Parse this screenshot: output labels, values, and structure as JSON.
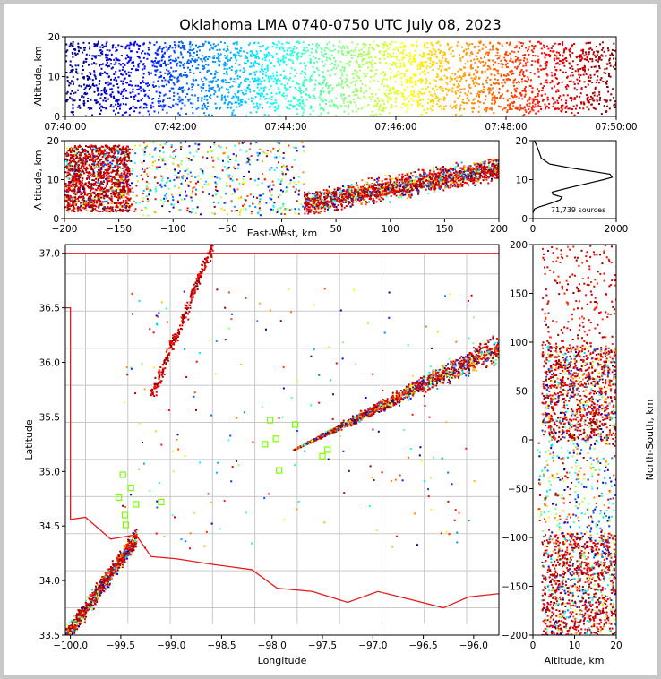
{
  "chart_data": [
    {
      "id": "time_altitude",
      "type": "scatter",
      "title": "Oklahoma LMA 0740-0750 UTC July 08, 2023",
      "ylabel": "Altitude, km",
      "xlim": [
        "07:40:00",
        "07:50:00"
      ],
      "ylim": [
        0,
        20
      ],
      "xticks": [
        "07:40:00",
        "07:42:00",
        "07:44:00",
        "07:46:00",
        "07:48:00",
        "07:50:00"
      ],
      "yticks": [
        "0",
        "10",
        "20"
      ],
      "color_by": "time",
      "colormap": "jet",
      "altitude_band_km": [
        2,
        19
      ]
    },
    {
      "id": "east_altitude",
      "type": "scatter",
      "xlabel": "East-West, km",
      "ylabel": "Altitude, km",
      "xlim": [
        -200,
        200
      ],
      "ylim": [
        0,
        20
      ],
      "xticks": [
        "−200",
        "−150",
        "−100",
        "−50",
        "0",
        "50",
        "100",
        "150",
        "200"
      ],
      "yticks": [
        "0",
        "10",
        "20"
      ],
      "clusters": [
        {
          "x_range": [
            -200,
            -140
          ],
          "z_range": [
            2,
            19
          ],
          "colors": "mixed, mostly dark red"
        },
        {
          "x_range": [
            20,
            200
          ],
          "z_range": [
            2,
            18
          ],
          "colors": "arc from blue to dark red"
        }
      ]
    },
    {
      "id": "altitude_histogram",
      "type": "line",
      "xlim": [
        0,
        2000
      ],
      "ylim": [
        0,
        20
      ],
      "xticks": [
        "0",
        "2000"
      ],
      "yticks": [
        "0",
        "10",
        "20"
      ],
      "annotation": "71,739 sources",
      "x": [
        0,
        40,
        150,
        300,
        450,
        650,
        700,
        480,
        460,
        900,
        1500,
        1700,
        1900,
        1850,
        1500,
        900,
        400,
        200,
        150,
        80,
        30
      ],
      "y": [
        1.5,
        2.5,
        3.0,
        3.5,
        4.0,
        4.8,
        5.5,
        6.2,
        6.8,
        8.0,
        9.5,
        10.0,
        10.6,
        11.4,
        12.0,
        13.0,
        14.0,
        15.5,
        17.0,
        19.0,
        20.0
      ]
    },
    {
      "id": "plan_view",
      "type": "scatter",
      "xlabel": "Longitude",
      "ylabel": "Latitude",
      "xlim": [
        -100.05,
        -95.75
      ],
      "ylim": [
        33.5,
        37.08
      ],
      "xticks": [
        "−100.0",
        "−99.5",
        "−99.0",
        "−98.5",
        "−98.0",
        "−97.5",
        "−97.0",
        "−96.5",
        "−96.0"
      ],
      "yticks": [
        "33.5",
        "34.0",
        "34.5",
        "35.0",
        "35.5",
        "36.0",
        "36.5",
        "37.0"
      ],
      "stations_lon_lat": [
        [
          -99.48,
          34.97
        ],
        [
          -99.4,
          34.85
        ],
        [
          -99.52,
          34.76
        ],
        [
          -99.35,
          34.7
        ],
        [
          -99.46,
          34.6
        ],
        [
          -99.45,
          34.51
        ],
        [
          -99.1,
          34.72
        ],
        [
          -98.02,
          35.47
        ],
        [
          -97.96,
          35.3
        ],
        [
          -98.07,
          35.25
        ],
        [
          -97.93,
          35.01
        ],
        [
          -97.77,
          35.43
        ],
        [
          -97.5,
          35.14
        ],
        [
          -97.45,
          35.2
        ]
      ],
      "storm_clusters": [
        {
          "name": "southwest",
          "lon_range": [
            -100.05,
            -99.35
          ],
          "lat_range": [
            33.5,
            34.4
          ]
        },
        {
          "name": "northeast line",
          "lon_range": [
            -97.8,
            -95.75
          ],
          "lat_range": [
            35.2,
            36.15
          ]
        },
        {
          "name": "northwest trail",
          "lon_range": [
            -99.2,
            -98.6
          ],
          "lat_range": [
            35.7,
            37.08
          ]
        }
      ]
    },
    {
      "id": "altitude_north",
      "type": "scatter",
      "xlabel": "Altitude, km",
      "ylabel": "North-South, km",
      "xlim": [
        0,
        20
      ],
      "ylim": [
        -200,
        200
      ],
      "xticks": [
        "0",
        "10",
        "20"
      ],
      "yticks": [
        "−200",
        "−150",
        "−100",
        "−50",
        "0",
        "50",
        "100",
        "150",
        "200"
      ],
      "clusters": [
        {
          "z_range": [
            2,
            20
          ],
          "y_range": [
            0,
            97
          ]
        },
        {
          "z_range": [
            2,
            20
          ],
          "y_range": [
            -200,
            -95
          ]
        }
      ]
    }
  ],
  "colors": {
    "state_border": "#e41a1c",
    "county_lines": "#c8c8c8",
    "station_marker": "#7cfc00",
    "histogram_line": "#000000",
    "frame_background": "#c8c8c8"
  }
}
